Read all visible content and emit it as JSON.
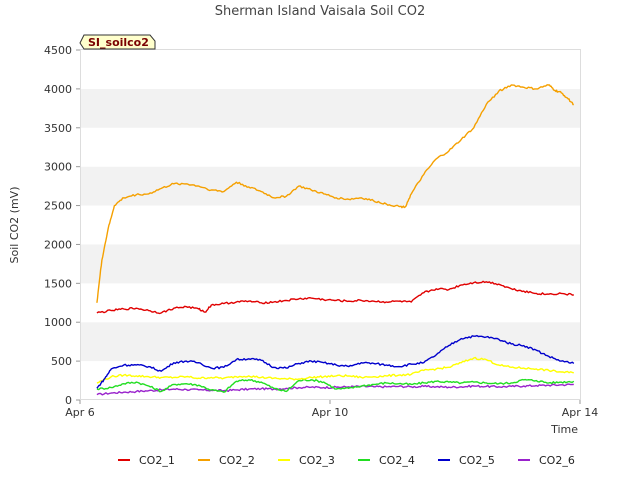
{
  "chart_data": {
    "type": "line",
    "title": "Sherman Island Vaisala Soil CO2",
    "xlabel": "Time",
    "ylabel": "Soil CO2 (mV)",
    "station_label": "SI_soilco2",
    "xlim": [
      6,
      14
    ],
    "ylim": [
      0,
      4500
    ],
    "x_ticks": [
      {
        "value": 6,
        "label": "Apr 6"
      },
      {
        "value": 10,
        "label": "Apr 10"
      },
      {
        "value": 14,
        "label": "Apr 14"
      }
    ],
    "y_ticks": [
      0,
      500,
      1000,
      1500,
      2000,
      2500,
      3000,
      3500,
      4000,
      4500
    ],
    "grid": "horizontal bands",
    "legend_position": "bottom",
    "series": [
      {
        "name": "CO2_1",
        "color": "#e00000",
        "x": [
          6.27,
          6.5,
          6.7,
          6.9,
          7.1,
          7.3,
          7.5,
          7.7,
          7.9,
          8.0,
          8.1,
          8.3,
          8.5,
          8.7,
          8.9,
          9.1,
          9.3,
          9.5,
          9.7,
          9.9,
          10.1,
          10.3,
          10.5,
          10.7,
          10.9,
          11.1,
          11.3,
          11.5,
          11.7,
          11.9,
          12.1,
          12.3,
          12.5,
          12.7,
          12.9,
          13.1,
          13.3,
          13.5,
          13.7,
          13.9
        ],
        "y": [
          1120,
          1150,
          1170,
          1180,
          1150,
          1120,
          1180,
          1200,
          1170,
          1130,
          1220,
          1240,
          1260,
          1270,
          1250,
          1260,
          1280,
          1300,
          1310,
          1290,
          1280,
          1270,
          1280,
          1270,
          1260,
          1270,
          1260,
          1380,
          1430,
          1420,
          1480,
          1510,
          1520,
          1490,
          1430,
          1400,
          1370,
          1360,
          1370,
          1350
        ]
      },
      {
        "name": "CO2_2",
        "color": "#f5a000",
        "x": [
          6.27,
          6.35,
          6.45,
          6.55,
          6.7,
          6.9,
          7.1,
          7.3,
          7.5,
          7.7,
          7.9,
          8.1,
          8.3,
          8.5,
          8.7,
          8.9,
          9.1,
          9.3,
          9.5,
          9.7,
          9.9,
          10.1,
          10.3,
          10.5,
          10.7,
          10.9,
          11.1,
          11.2,
          11.3,
          11.5,
          11.7,
          11.9,
          12.1,
          12.3,
          12.5,
          12.7,
          12.9,
          13.1,
          13.3,
          13.5,
          13.6,
          13.7,
          13.8,
          13.9
        ],
        "y": [
          1250,
          1800,
          2200,
          2500,
          2600,
          2640,
          2650,
          2720,
          2780,
          2780,
          2750,
          2700,
          2680,
          2800,
          2740,
          2680,
          2600,
          2620,
          2750,
          2700,
          2650,
          2600,
          2580,
          2600,
          2560,
          2520,
          2490,
          2480,
          2650,
          2900,
          3100,
          3200,
          3350,
          3500,
          3800,
          3970,
          4050,
          4020,
          4000,
          4050,
          3980,
          3950,
          3880,
          3800
        ]
      },
      {
        "name": "CO2_3",
        "color": "#ffff00",
        "x": [
          6.27,
          6.5,
          6.7,
          6.9,
          7.1,
          7.3,
          7.5,
          7.7,
          7.9,
          8.1,
          8.3,
          8.5,
          8.7,
          8.9,
          9.1,
          9.3,
          9.5,
          9.7,
          9.9,
          10.1,
          10.3,
          10.5,
          10.7,
          10.9,
          11.1,
          11.3,
          11.5,
          11.7,
          11.9,
          12.1,
          12.3,
          12.5,
          12.7,
          12.9,
          13.1,
          13.3,
          13.5,
          13.7,
          13.9
        ],
        "y": [
          220,
          300,
          320,
          310,
          300,
          290,
          290,
          300,
          280,
          290,
          280,
          300,
          310,
          290,
          280,
          270,
          270,
          290,
          300,
          310,
          310,
          290,
          300,
          310,
          320,
          330,
          380,
          400,
          420,
          480,
          540,
          520,
          450,
          420,
          410,
          400,
          380,
          360,
          350
        ]
      },
      {
        "name": "CO2_4",
        "color": "#22dd22",
        "x": [
          6.27,
          6.5,
          6.7,
          6.9,
          7.1,
          7.3,
          7.5,
          7.7,
          7.9,
          8.1,
          8.3,
          8.5,
          8.7,
          8.9,
          9.1,
          9.3,
          9.5,
          9.7,
          9.9,
          10.1,
          10.3,
          10.5,
          10.7,
          10.9,
          11.1,
          11.3,
          11.5,
          11.7,
          11.9,
          12.1,
          12.3,
          12.5,
          12.7,
          12.9,
          13.1,
          13.3,
          13.5,
          13.7,
          13.9
        ],
        "y": [
          140,
          160,
          210,
          230,
          180,
          110,
          200,
          210,
          190,
          130,
          100,
          240,
          260,
          230,
          150,
          110,
          250,
          260,
          230,
          140,
          150,
          180,
          200,
          220,
          210,
          200,
          220,
          240,
          230,
          220,
          230,
          220,
          210,
          220,
          260,
          250,
          220,
          230,
          240
        ]
      },
      {
        "name": "CO2_5",
        "color": "#0000cc",
        "x": [
          6.27,
          6.4,
          6.5,
          6.7,
          6.9,
          7.1,
          7.3,
          7.5,
          7.7,
          7.9,
          8.1,
          8.3,
          8.5,
          8.7,
          8.9,
          9.1,
          9.3,
          9.5,
          9.7,
          9.9,
          10.1,
          10.3,
          10.5,
          10.7,
          10.9,
          11.1,
          11.3,
          11.5,
          11.7,
          11.9,
          12.1,
          12.3,
          12.5,
          12.7,
          12.9,
          13.1,
          13.3,
          13.5,
          13.7,
          13.9
        ],
        "y": [
          150,
          280,
          400,
          450,
          450,
          430,
          370,
          480,
          500,
          480,
          410,
          420,
          520,
          530,
          510,
          420,
          410,
          470,
          500,
          480,
          450,
          430,
          480,
          470,
          450,
          430,
          460,
          480,
          580,
          700,
          790,
          820,
          810,
          780,
          720,
          700,
          640,
          560,
          500,
          470
        ]
      },
      {
        "name": "CO2_6",
        "color": "#9922cc",
        "x": [
          6.27,
          6.5,
          6.7,
          6.9,
          7.1,
          7.3,
          7.5,
          7.7,
          7.9,
          8.1,
          8.3,
          8.5,
          8.7,
          8.9,
          9.1,
          9.3,
          9.5,
          9.7,
          9.9,
          10.1,
          10.3,
          10.5,
          10.7,
          10.9,
          11.1,
          11.3,
          11.5,
          11.7,
          11.9,
          12.1,
          12.3,
          12.5,
          12.7,
          12.9,
          13.1,
          13.3,
          13.5,
          13.7,
          13.9
        ],
        "y": [
          70,
          90,
          100,
          110,
          120,
          130,
          140,
          135,
          130,
          125,
          120,
          130,
          140,
          145,
          140,
          150,
          160,
          165,
          160,
          165,
          170,
          175,
          170,
          170,
          175,
          170,
          175,
          170,
          165,
          170,
          180,
          175,
          170,
          175,
          180,
          185,
          190,
          195,
          200
        ]
      }
    ]
  }
}
